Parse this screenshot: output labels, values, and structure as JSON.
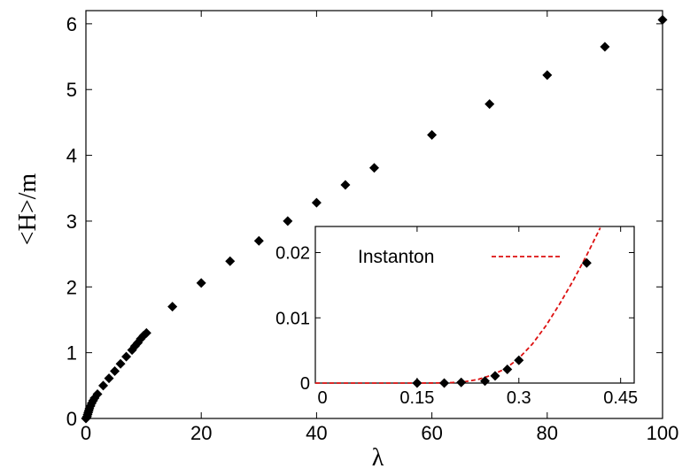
{
  "chart_data": [
    {
      "type": "scatter",
      "panel": "main",
      "xlabel": "λ",
      "ylabel": "<H>/m",
      "xlim": [
        0,
        100
      ],
      "ylim": [
        0,
        6.2
      ],
      "xticks": [
        "0",
        "20",
        "40",
        "60",
        "80",
        "100"
      ],
      "yticks": [
        "0",
        "1",
        "2",
        "3",
        "4",
        "5",
        "6"
      ],
      "grid": false,
      "marker": "diamond",
      "marker_color": "#000000",
      "points": [
        {
          "x": 0.0,
          "y": 0.0
        },
        {
          "x": 0.1,
          "y": 0.01
        },
        {
          "x": 0.2,
          "y": 0.03
        },
        {
          "x": 0.3,
          "y": 0.06
        },
        {
          "x": 0.4,
          "y": 0.09
        },
        {
          "x": 0.5,
          "y": 0.12
        },
        {
          "x": 0.6,
          "y": 0.15
        },
        {
          "x": 0.8,
          "y": 0.19
        },
        {
          "x": 1.0,
          "y": 0.23
        },
        {
          "x": 1.25,
          "y": 0.27
        },
        {
          "x": 1.5,
          "y": 0.31
        },
        {
          "x": 2.0,
          "y": 0.37
        },
        {
          "x": 3.0,
          "y": 0.5
        },
        {
          "x": 4.0,
          "y": 0.61
        },
        {
          "x": 5.0,
          "y": 0.72
        },
        {
          "x": 6.0,
          "y": 0.83
        },
        {
          "x": 7.0,
          "y": 0.94
        },
        {
          "x": 8.0,
          "y": 1.04
        },
        {
          "x": 8.5,
          "y": 1.1
        },
        {
          "x": 9.0,
          "y": 1.15
        },
        {
          "x": 9.5,
          "y": 1.21
        },
        {
          "x": 10.0,
          "y": 1.26
        },
        {
          "x": 10.5,
          "y": 1.3
        },
        {
          "x": 15.0,
          "y": 1.7
        },
        {
          "x": 20.0,
          "y": 2.06
        },
        {
          "x": 25.0,
          "y": 2.39
        },
        {
          "x": 30.0,
          "y": 2.7
        },
        {
          "x": 35.0,
          "y": 3.0
        },
        {
          "x": 40.0,
          "y": 3.28
        },
        {
          "x": 45.0,
          "y": 3.55
        },
        {
          "x": 50.0,
          "y": 3.81
        },
        {
          "x": 60.0,
          "y": 4.31
        },
        {
          "x": 70.0,
          "y": 4.78
        },
        {
          "x": 80.0,
          "y": 5.22
        },
        {
          "x": 90.0,
          "y": 5.65
        },
        {
          "x": 100.0,
          "y": 6.06
        }
      ]
    },
    {
      "type": "scatter",
      "panel": "inset",
      "xlim": [
        0,
        0.47
      ],
      "ylim": [
        0,
        0.024
      ],
      "xticks": [
        "0",
        "0.15",
        "0.3",
        "0.45"
      ],
      "xtick_values": [
        0,
        0.15,
        0.3,
        0.45
      ],
      "yticks": [
        "0",
        "0.01",
        "0.02"
      ],
      "ytick_values": [
        0,
        0.01,
        0.02
      ],
      "grid": false,
      "marker": "diamond",
      "marker_color": "#000000",
      "points": [
        {
          "x": 0.15,
          "y": 0.0
        },
        {
          "x": 0.19,
          "y": 0.0
        },
        {
          "x": 0.215,
          "y": 0.0001
        },
        {
          "x": 0.25,
          "y": 0.0003
        },
        {
          "x": 0.265,
          "y": 0.0011
        },
        {
          "x": 0.283,
          "y": 0.0021
        },
        {
          "x": 0.3,
          "y": 0.0035
        },
        {
          "x": 0.4,
          "y": 0.0184
        }
      ],
      "series": [
        {
          "name": "Instanton",
          "style": "dashed",
          "color": "#dd1111",
          "x": [
            0,
            0.05,
            0.1,
            0.15,
            0.18,
            0.2,
            0.22,
            0.24,
            0.26,
            0.28,
            0.3,
            0.32,
            0.34,
            0.36,
            0.38,
            0.4,
            0.42
          ],
          "y": [
            0,
            0,
            0,
            0,
            2e-05,
            7e-05,
            0.0002,
            0.00055,
            0.0012,
            0.0022,
            0.0038,
            0.006,
            0.0088,
            0.0121,
            0.0157,
            0.0196,
            0.0238
          ]
        }
      ],
      "legend": {
        "position": "top-left",
        "entries": [
          "Instanton"
        ]
      }
    }
  ]
}
